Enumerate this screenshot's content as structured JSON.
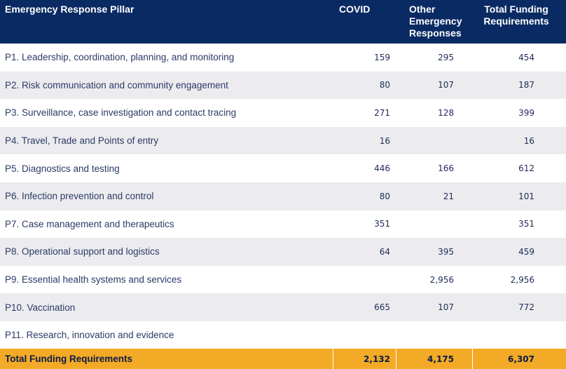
{
  "header": {
    "pillar": "Emergency Response Pillar",
    "covid": "COVID",
    "other": "Other Emergency Responses",
    "total": "Total Funding Requirements"
  },
  "rows": [
    {
      "pillar": "P1. Leadership, coordination, planning, and monitoring",
      "covid": "159",
      "other": "295",
      "total": "454"
    },
    {
      "pillar": "P2. Risk communication and community engagement",
      "covid": "80",
      "other": "107",
      "total": "187"
    },
    {
      "pillar": "P3. Surveillance, case investigation and contact tracing",
      "covid": "271",
      "other": "128",
      "total": "399"
    },
    {
      "pillar": "P4. Travel, Trade and Points of entry",
      "covid": "16",
      "other": "",
      "total": "16"
    },
    {
      "pillar": "P5. Diagnostics and testing",
      "covid": "446",
      "other": "166",
      "total": "612"
    },
    {
      "pillar": "P6. Infection prevention and control",
      "covid": "80",
      "other": "21",
      "total": "101"
    },
    {
      "pillar": "P7. Case management and therapeutics",
      "covid": "351",
      "other": "",
      "total": "351"
    },
    {
      "pillar": "P8. Operational support and logistics",
      "covid": "64",
      "other": "395",
      "total": "459"
    },
    {
      "pillar": "P9. Essential health systems and services",
      "covid": "",
      "other": "2,956",
      "total": "2,956"
    },
    {
      "pillar": "P10. Vaccination",
      "covid": "665",
      "other": "107",
      "total": "772"
    },
    {
      "pillar": "P11. Research, innovation and evidence",
      "covid": "",
      "other": "",
      "total": ""
    }
  ],
  "totals": {
    "label": "Total Funding Requirements",
    "covid": "2,132",
    "other": "4,175",
    "total": "6,307"
  },
  "colors": {
    "header_bg": "#0a2a63",
    "shade_bg": "#ececef",
    "total_bg": "#f3aa26"
  }
}
